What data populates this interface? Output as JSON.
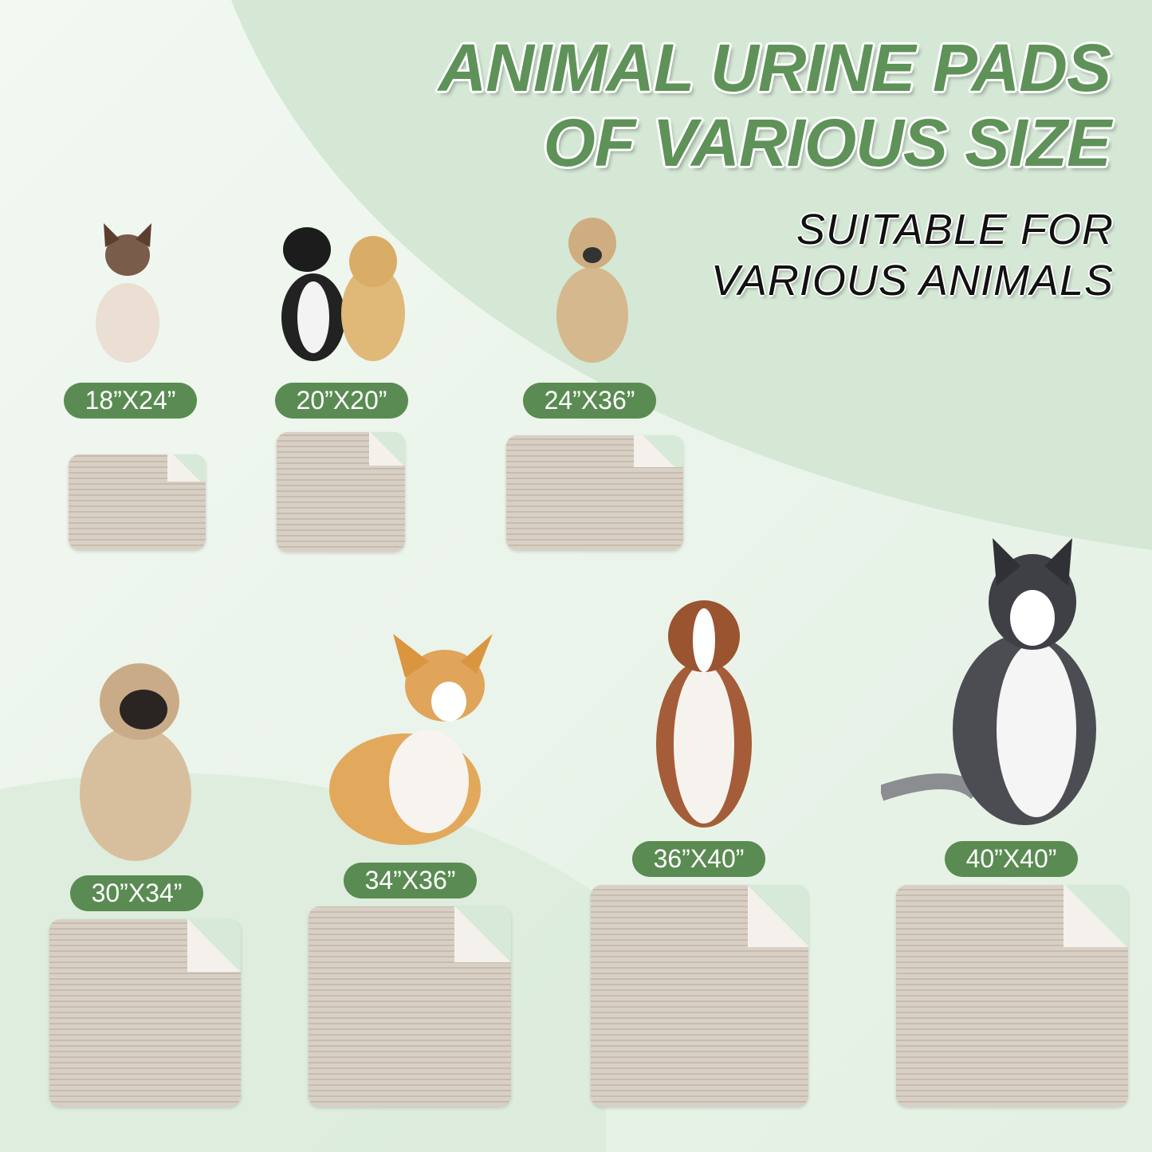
{
  "title": {
    "line1": "ANIMAL URINE PADS",
    "line2": "OF VARIOUS SIZE"
  },
  "subtitle": {
    "line1": "SUITABLE FOR",
    "line2": "VARIOUS ANIMALS"
  },
  "colors": {
    "accent_green": "#5a8b52",
    "title_green": "#5e9258",
    "pad_beige": "#d5cbbf",
    "background": "#d7e9d8"
  },
  "sizes": [
    {
      "label": "18”X24”",
      "animal": "siamese-cat"
    },
    {
      "label": "20”X20”",
      "animal": "cat-and-puppy"
    },
    {
      "label": "24”X36”",
      "animal": "tan-dog"
    },
    {
      "label": "30”X34”",
      "animal": "pug"
    },
    {
      "label": "34”X36”",
      "animal": "corgi"
    },
    {
      "label": "36”X40”",
      "animal": "australian-shepherd"
    },
    {
      "label": "40”X40”",
      "animal": "husky"
    }
  ]
}
